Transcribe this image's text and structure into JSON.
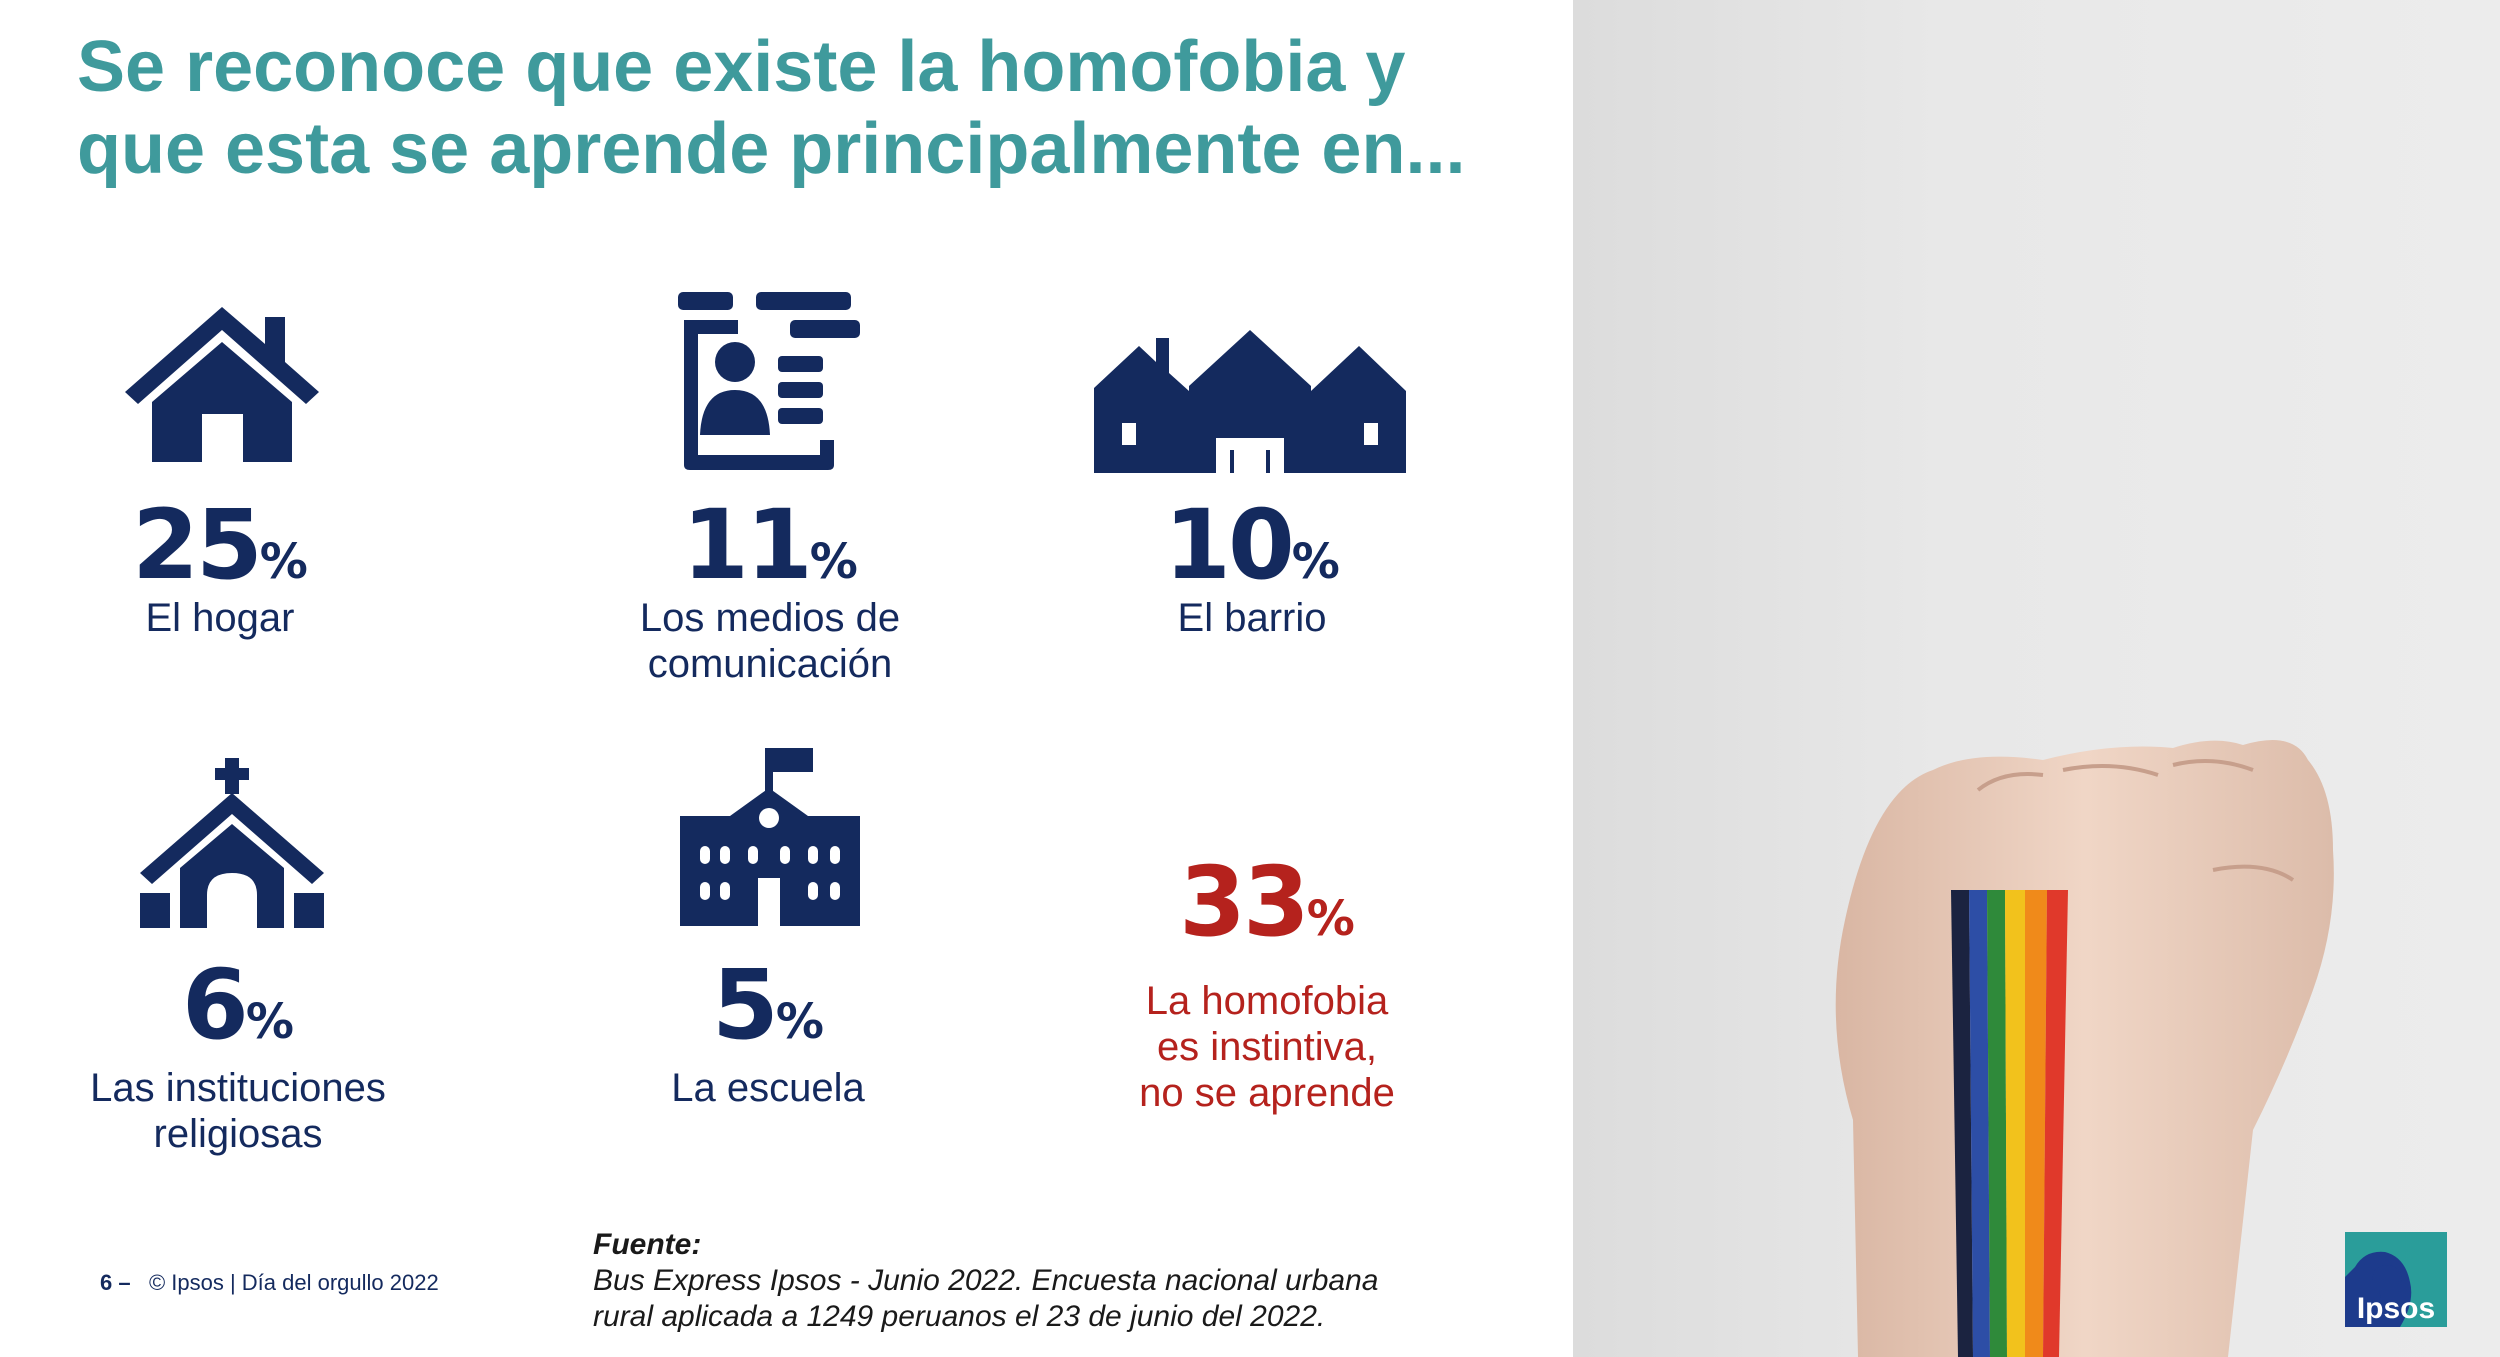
{
  "title": {
    "line1": "Se reconoce que existe la homofobia y",
    "line2": "que esta se aprende principalmente en..."
  },
  "colors": {
    "title": "#3f9a9c",
    "primary": "#142a5e",
    "highlight": "#b5221d"
  },
  "stats": [
    {
      "icon": "house-icon",
      "value": "25",
      "unit": "%",
      "label_lines": [
        "El hogar"
      ]
    },
    {
      "icon": "media-device-icon",
      "value": "11",
      "unit": "%",
      "label_lines": [
        "Los medios de",
        "comunicación"
      ]
    },
    {
      "icon": "neighborhood-houses-icon",
      "value": "10",
      "unit": "%",
      "label_lines": [
        "El barrio"
      ]
    },
    {
      "icon": "church-icon",
      "value": "6",
      "unit": "%",
      "label_lines": [
        "Las instituciones",
        "religiosas"
      ]
    },
    {
      "icon": "school-building-icon",
      "value": "5",
      "unit": "%",
      "label_lines": [
        "La escuela"
      ]
    },
    {
      "icon": "",
      "value": "33",
      "unit": "%",
      "label_lines": [
        "La homofobia",
        "es instintiva,",
        "no se aprende"
      ]
    }
  ],
  "footer": {
    "page": "6 –",
    "credit": "© Ipsos | Día del orgullo 2022"
  },
  "source": {
    "heading": "Fuente:",
    "line1": "Bus Express Ipsos - Junio 2022. Encuesta nacional urbana",
    "line2": "rural aplicada a 1249 peruanos el 23 de junio del 2022."
  },
  "logo": {
    "text": "Ipsos"
  }
}
